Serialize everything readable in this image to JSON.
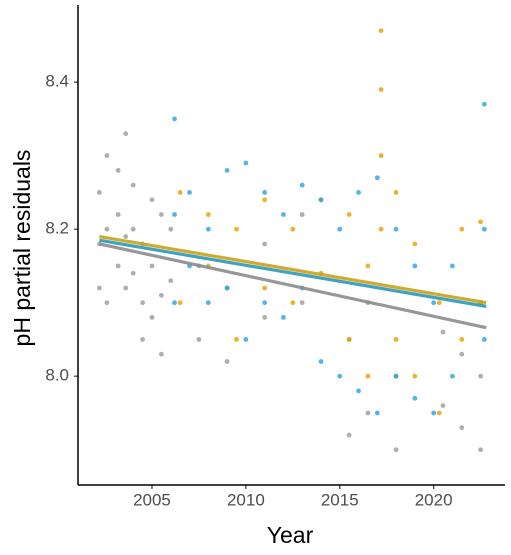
{
  "chart_data": {
    "type": "scatter",
    "xlabel": "Year",
    "ylabel": "pH partial residuals",
    "xlim": [
      2001.06,
      2023.8
    ],
    "ylim": [
      7.852,
      8.505
    ],
    "xticks": [
      2005,
      2010,
      2015,
      2020
    ],
    "yticks": [
      {
        "value": 8.0,
        "label": "8.0"
      },
      {
        "value": 8.2,
        "label": "8.2"
      },
      {
        "value": 8.4,
        "label": "8.4"
      }
    ],
    "grid": false,
    "series": [
      {
        "color": "#9a9a9a",
        "x": [
          2002.2,
          2002.2,
          2002.2,
          2002.6,
          2002.6,
          2002.6,
          2003.2,
          2003.2,
          2003.2,
          2003.6,
          2003.6,
          2003.6,
          2004.0,
          2004.0,
          2004.0,
          2004.5,
          2004.5,
          2004.5,
          2005.0,
          2005.0,
          2005.0,
          2005.5,
          2005.5,
          2005.5,
          2006.0,
          2006.0,
          2007.5,
          2007.5,
          2009.0,
          2009.0,
          2011.0,
          2011.0,
          2013.0,
          2013.0,
          2015.5,
          2015.5,
          2016.5,
          2016.5,
          2018.0,
          2018.0,
          2020.5,
          2020.5,
          2021.5,
          2021.5,
          2022.5,
          2022.5,
          2022.5
        ],
        "values": [
          8.12,
          8.25,
          8.18,
          8.3,
          8.2,
          8.1,
          8.28,
          8.15,
          8.22,
          8.33,
          8.19,
          8.12,
          8.26,
          8.14,
          8.2,
          8.1,
          8.05,
          8.18,
          8.24,
          8.15,
          8.08,
          8.22,
          8.11,
          8.03,
          8.2,
          8.13,
          8.15,
          8.05,
          8.02,
          8.12,
          8.08,
          8.18,
          8.1,
          8.22,
          7.92,
          8.05,
          7.95,
          8.1,
          7.9,
          8.0,
          7.96,
          8.06,
          7.93,
          8.03,
          7.9,
          8.0,
          8.1
        ]
      },
      {
        "color": "#e69f00",
        "x": [
          2006.5,
          2006.5,
          2008,
          2008,
          2009.5,
          2009.5,
          2011,
          2011,
          2012.5,
          2012.5,
          2014,
          2014,
          2015.5,
          2015.5,
          2016.5,
          2016.5,
          2017.2,
          2017.2,
          2017.2,
          2017.2,
          2018,
          2018,
          2019,
          2019,
          2020.3,
          2020.3,
          2021.5,
          2021.5,
          2022.5,
          2022.5
        ],
        "values": [
          8.1,
          8.25,
          8.15,
          8.22,
          8.05,
          8.2,
          8.12,
          8.24,
          8.1,
          8.2,
          8.14,
          8.24,
          8.05,
          8.22,
          8.0,
          8.15,
          8.47,
          8.39,
          8.3,
          8.2,
          8.05,
          8.25,
          8.0,
          8.18,
          7.95,
          8.1,
          8.05,
          8.2,
          8.1,
          8.21
        ]
      },
      {
        "color": "#25a3de",
        "x": [
          2006.2,
          2006.2,
          2006.2,
          2007,
          2007,
          2008,
          2008,
          2009,
          2009,
          2010,
          2010,
          2011,
          2011,
          2012,
          2012,
          2013,
          2013,
          2014,
          2014,
          2015,
          2015,
          2016,
          2016,
          2017,
          2017,
          2018,
          2018,
          2019,
          2019,
          2020,
          2020,
          2021,
          2021,
          2022.7,
          2022.7,
          2022.7
        ],
        "values": [
          8.35,
          8.1,
          8.22,
          8.25,
          8.15,
          8.2,
          8.1,
          8.28,
          8.12,
          8.29,
          8.05,
          8.25,
          8.1,
          8.22,
          8.08,
          8.26,
          8.12,
          8.24,
          8.02,
          8.2,
          8.0,
          8.25,
          7.98,
          8.27,
          7.95,
          8.2,
          8.0,
          8.15,
          7.97,
          8.1,
          7.95,
          8.15,
          8.0,
          8.37,
          8.2,
          8.05
        ]
      }
    ],
    "trend_lines": [
      {
        "color": "#8c8c8c",
        "x": [
          2002.2,
          2022.8
        ],
        "values": [
          8.18,
          8.066
        ]
      },
      {
        "color": "#c9a21a",
        "x": [
          2002.2,
          2022.8
        ],
        "values": [
          8.19,
          8.1
        ]
      },
      {
        "color": "#2a98b8",
        "x": [
          2002.2,
          2022.8
        ],
        "values": [
          8.185,
          8.095
        ]
      }
    ]
  }
}
